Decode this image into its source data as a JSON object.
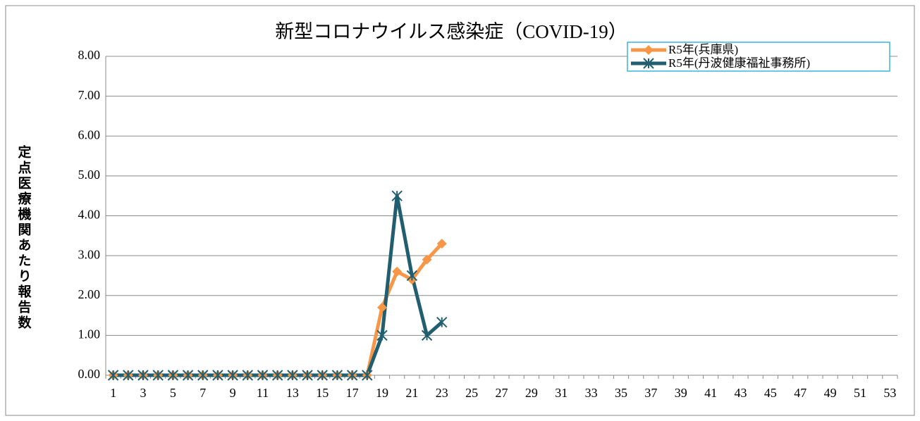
{
  "chart_data": {
    "type": "line",
    "title": "新型コロナウイルス感染症（COVID-19）",
    "y_label": "定点医療機関あたり報告数",
    "categories": [
      "1",
      null,
      "3",
      null,
      "5",
      null,
      "7",
      null,
      "9",
      null,
      "11",
      null,
      "13",
      null,
      "15",
      null,
      "17",
      null,
      "19",
      null,
      "21",
      null,
      "23",
      null,
      "25",
      null,
      "27",
      null,
      "29",
      null,
      "31",
      null,
      "33",
      null,
      "35",
      null,
      "37",
      null,
      "39",
      null,
      "41",
      null,
      "43",
      null,
      "45",
      null,
      "47",
      null,
      "49",
      null,
      "51",
      null,
      "53"
    ],
    "series": [
      {
        "name": "R5年(兵庫県)",
        "color": "#f79646",
        "marker": "diamond",
        "values": [
          0,
          0,
          0,
          0,
          0,
          0,
          0,
          0,
          0,
          0,
          0,
          0,
          0,
          0,
          0,
          0,
          0,
          0,
          1.7,
          2.6,
          2.4,
          2.9,
          3.3,
          null,
          null,
          null,
          null,
          null,
          null,
          null,
          null,
          null,
          null,
          null,
          null,
          null,
          null,
          null,
          null,
          null,
          null,
          null,
          null,
          null,
          null,
          null,
          null,
          null,
          null,
          null,
          null,
          null,
          null
        ]
      },
      {
        "name": "R5年(丹波健康福祉事務所)",
        "color": "#215f70",
        "marker": "asterisk",
        "values": [
          0,
          0,
          0,
          0,
          0,
          0,
          0,
          0,
          0,
          0,
          0,
          0,
          0,
          0,
          0,
          0,
          0,
          0,
          1.0,
          4.5,
          2.5,
          1.0,
          1.33,
          null,
          null,
          null,
          null,
          null,
          null,
          null,
          null,
          null,
          null,
          null,
          null,
          null,
          null,
          null,
          null,
          null,
          null,
          null,
          null,
          null,
          null,
          null,
          null,
          null,
          null,
          null,
          null,
          null,
          null
        ]
      }
    ],
    "ylim": [
      0,
      8
    ],
    "yticks": [
      {
        "value": 0,
        "label": "0.00"
      },
      {
        "value": 1,
        "label": "1.00"
      },
      {
        "value": 2,
        "label": "2.00"
      },
      {
        "value": 3,
        "label": "3.00"
      },
      {
        "value": 4,
        "label": "4.00"
      },
      {
        "value": 5,
        "label": "5.00"
      },
      {
        "value": 6,
        "label": "6.00"
      },
      {
        "value": 7,
        "label": "7.00"
      },
      {
        "value": 8,
        "label": "8.00"
      }
    ],
    "grid": true,
    "legend": "top-right"
  }
}
